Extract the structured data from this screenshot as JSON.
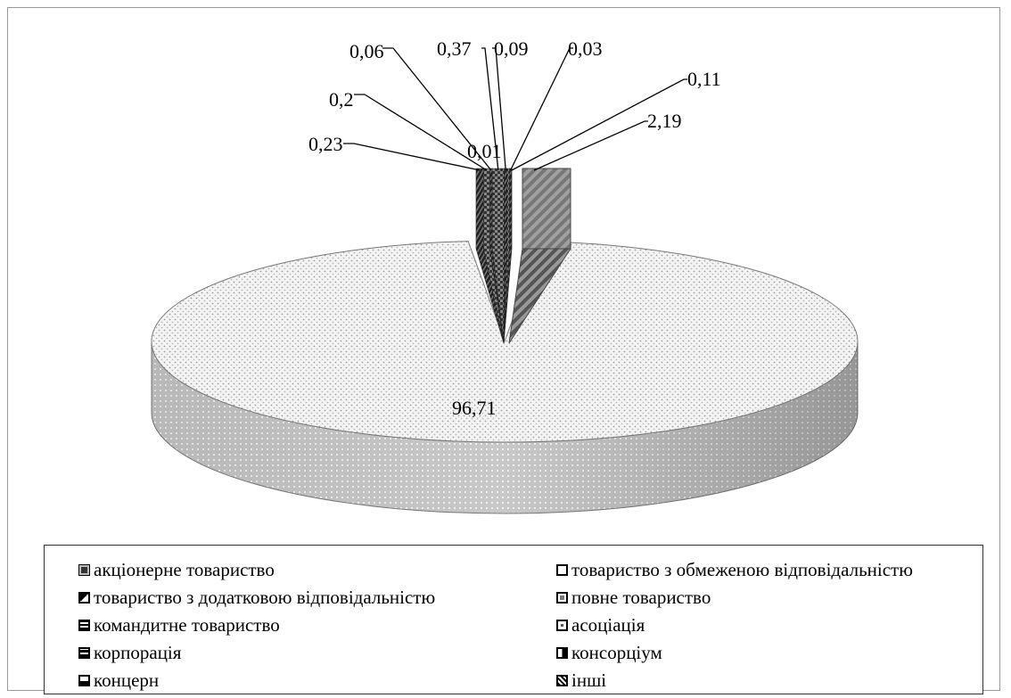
{
  "chart_data": {
    "type": "pie",
    "style": "3d-exploded",
    "categories": [
      "акціонерне товариство",
      "товариство з обмеженою відповідальністю",
      "товариство з додатковою відповідальністю",
      "повне товариство",
      "командитне товариство",
      "асоціація",
      "корпорація",
      "консорціум",
      "концерн",
      "інші"
    ],
    "values": [
      2.19,
      96.71,
      0.23,
      0.2,
      0.06,
      0.37,
      0.09,
      0.01,
      0.03,
      0.11
    ],
    "value_labels": [
      "2,19",
      "96,71",
      "0,23",
      "0,2",
      "0,06",
      "0,37",
      "0,09",
      "0,01",
      "0,03",
      "0,11"
    ],
    "legend_position": "bottom",
    "legend_columns": 2,
    "title": ""
  }
}
